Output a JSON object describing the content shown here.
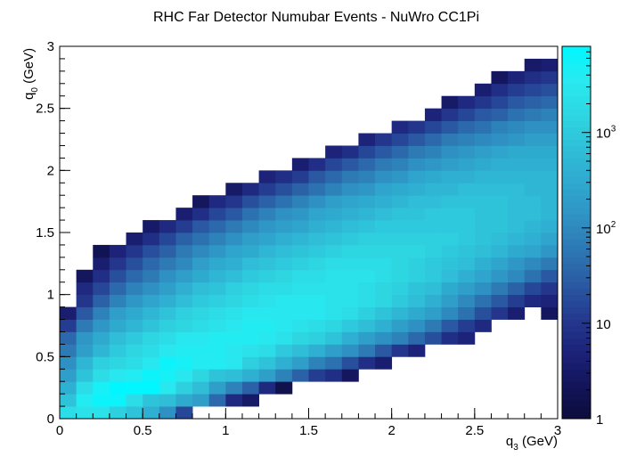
{
  "chart_data": {
    "type": "heatmap",
    "title": "RHC Far Detector Numubar Events - NuWro CC1Pi",
    "xlabel_main": "q",
    "xlabel_sub": "3",
    "xlabel_unit": " (GeV)",
    "ylabel_main": "q",
    "ylabel_sub": "0",
    "ylabel_unit": " (GeV)",
    "xlim": [
      0,
      3
    ],
    "ylim": [
      0,
      3
    ],
    "nbins_x": 30,
    "nbins_y": 30,
    "x_ticks": [
      "0",
      "0.5",
      "1",
      "1.5",
      "2",
      "2.5",
      "3"
    ],
    "y_ticks": [
      "0",
      "0.5",
      "1",
      "1.5",
      "2",
      "2.5",
      "3"
    ],
    "z_scale": "log",
    "z_range": [
      1,
      8000
    ],
    "z_ticks": [
      "1",
      "10",
      "10",
      "10"
    ],
    "z_tick_exponents": [
      "",
      "",
      "2",
      "3"
    ],
    "palette": [
      "#0c0c3c",
      "#13145a",
      "#1c237a",
      "#243a8f",
      "#2a5aa3",
      "#2d78b4",
      "#2f93c4",
      "#2fa9cf",
      "#2fbfd8",
      "#2ed6e2",
      "#28eaf0",
      "#00f7ff"
    ],
    "grid": false,
    "legend": "color bar right",
    "log10_counts_by_row": [
      "",
      "",
      "",
      "",
      "",
      "",
      "",
      "",
      "",
      "",
      "",
      "",
      "",
      "",
      "",
      "",
      "",
      "",
      "",
      "",
      "",
      "",
      "",
      "",
      "",
      "",
      "",
      "",
      "",
      "",
      "1.3 2.5 3.3 3.0 2.0 0.2",
      "",
      "",
      "",
      "",
      "",
      "",
      "",
      "",
      "",
      "",
      "",
      "",
      "",
      "",
      "",
      "",
      "",
      "",
      "",
      "",
      "",
      "",
      "",
      "",
      "",
      "",
      "",
      "",
      "",
      "2.0 3.3 3.6 3.6 3.1 2.6 0.5",
      "",
      "",
      "",
      "",
      "",
      "",
      "",
      "",
      "",
      "",
      "",
      "",
      "",
      "",
      "",
      "",
      "",
      "",
      "",
      "",
      "",
      "",
      "",
      "",
      "",
      "",
      "",
      "",
      ""
    ]
  }
}
